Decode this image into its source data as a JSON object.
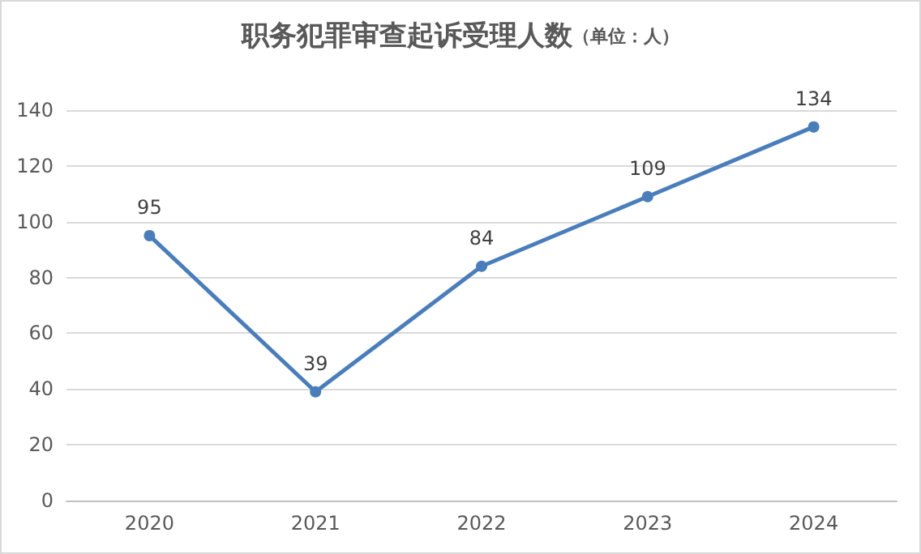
{
  "chart_data": {
    "type": "line",
    "title": "职务犯罪审查起诉受理人数",
    "subtitle": "（单位：人）",
    "categories": [
      "2020",
      "2021",
      "2022",
      "2023",
      "2024"
    ],
    "series": [
      {
        "color": "#4a7ebb",
        "values": [
          95,
          39,
          84,
          109,
          134
        ]
      }
    ],
    "ylim": [
      0,
      140
    ],
    "yticks": [
      0,
      20,
      40,
      60,
      80,
      100,
      120,
      140
    ],
    "grid": "y",
    "marker": "circle",
    "line_style": "solid",
    "data_labels": true
  }
}
